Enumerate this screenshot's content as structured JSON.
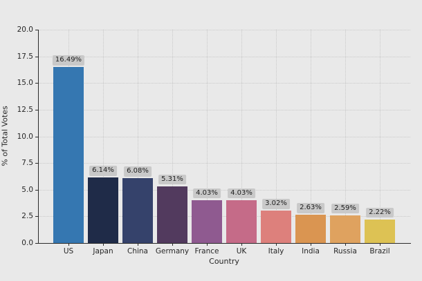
{
  "chart_data": {
    "type": "bar",
    "title": "",
    "xlabel": "Country",
    "ylabel": "% of Total Votes",
    "categories": [
      "US",
      "Japan",
      "China",
      "Germany",
      "France",
      "UK",
      "Italy",
      "India",
      "Russia",
      "Brazil"
    ],
    "values": [
      16.49,
      6.14,
      6.08,
      5.31,
      4.03,
      4.03,
      3.02,
      2.63,
      2.59,
      2.22
    ],
    "bar_labels": [
      "16.49%",
      "6.14%",
      "6.08%",
      "5.31%",
      "4.03%",
      "4.03%",
      "3.02%",
      "2.63%",
      "2.59%",
      "2.22%"
    ],
    "bar_colors": [
      "#3577b1",
      "#1f2b48",
      "#35426b",
      "#523a5e",
      "#8f5a90",
      "#c56b88",
      "#dd807c",
      "#da9551",
      "#dfa25f",
      "#ddc254"
    ],
    "ylim": [
      0,
      20
    ],
    "yticks": [
      0.0,
      2.5,
      5.0,
      7.5,
      10.0,
      12.5,
      15.0,
      17.5,
      20.0
    ],
    "ytick_labels": [
      "0.0",
      "2.5",
      "5.0",
      "7.5",
      "10.0",
      "12.5",
      "15.0",
      "17.5",
      "20.0"
    ],
    "grid": "dotted-both-axes",
    "legend": "none",
    "colors": {
      "figure_background": "#e9e9e9",
      "gridline": "#c9c9c9",
      "spine": "#2a2a2a",
      "tick_text": "#262626",
      "annotation_box_bg": "#c9c9c9",
      "annotation_text": "#1c1c1c"
    }
  }
}
